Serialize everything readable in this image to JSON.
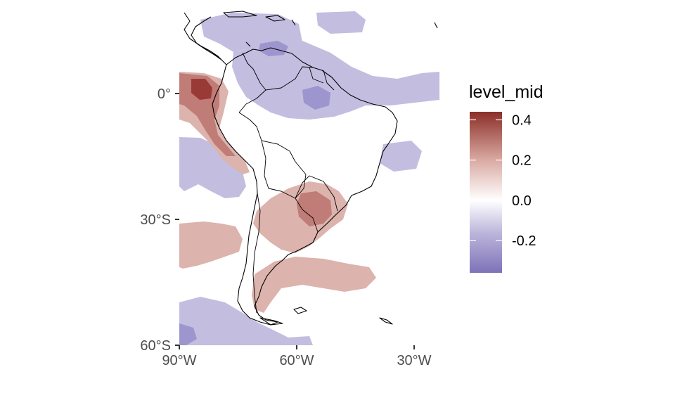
{
  "map": {
    "x_axis": {
      "ticks": [
        {
          "lon": -90,
          "label": "90°W"
        },
        {
          "lon": -60,
          "label": "60°W"
        },
        {
          "lon": -30,
          "label": "30°W"
        }
      ]
    },
    "y_axis": {
      "ticks": [
        {
          "lat": 0,
          "label": "0°"
        },
        {
          "lat": -30,
          "label": "30°S"
        },
        {
          "lat": -60,
          "label": "60°S"
        }
      ]
    },
    "extent": {
      "lon": [
        -90,
        -24
      ],
      "lat": [
        -60,
        20
      ]
    },
    "fill_colors": {
      "strong_positive": "#9a3a36",
      "positive": "#c07c77",
      "weak_positive": "#dcb3ad",
      "weak_negative": "#c3bde0",
      "negative": "#9d95cd",
      "strong_negative": "#7e72b8"
    }
  },
  "legend": {
    "title": "level_mid",
    "range": [
      -0.36,
      0.44
    ],
    "labels": [
      {
        "value": 0.4,
        "label": "0.4"
      },
      {
        "value": 0.2,
        "label": "0.2"
      },
      {
        "value": 0.0,
        "label": "0.0"
      },
      {
        "value": -0.2,
        "label": "-0.2"
      }
    ],
    "gradient_colors": [
      "#7e72b8",
      "#bdb6db",
      "#ffffff",
      "#d9aaa3",
      "#8c2e28"
    ]
  }
}
